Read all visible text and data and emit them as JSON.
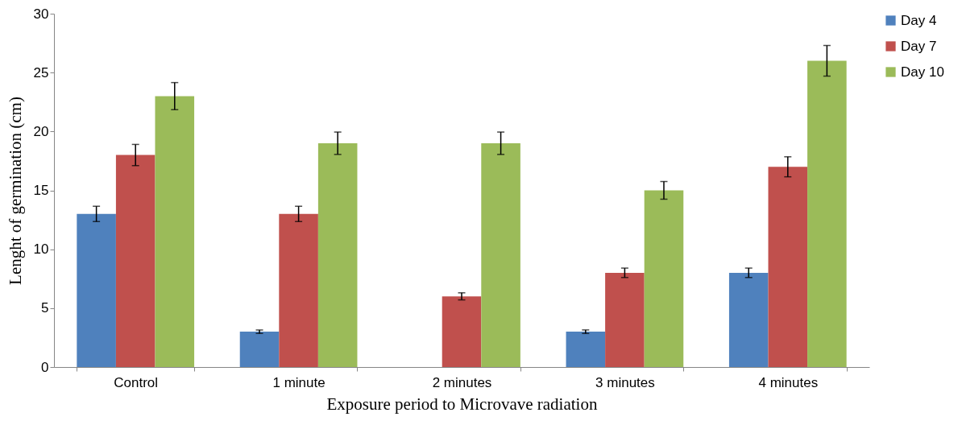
{
  "chart_data": {
    "type": "bar",
    "xlabel": "Exposure period to Microvave radiation",
    "ylabel": "Lenght  of germination (cm)",
    "categories": [
      "Control",
      "1 minute",
      "2 minutes",
      "3 minutes",
      "4 minutes"
    ],
    "series": [
      {
        "name": "Day 4",
        "color": "#4f81bd",
        "values": [
          13,
          3,
          0,
          3,
          8
        ],
        "errors": [
          0.65,
          0.15,
          null,
          0.15,
          0.4
        ]
      },
      {
        "name": "Day 7",
        "color": "#c0504d",
        "values": [
          18,
          13,
          6,
          8,
          17
        ],
        "errors": [
          0.9,
          0.65,
          0.3,
          0.4,
          0.85
        ]
      },
      {
        "name": "Day 10",
        "color": "#9bbb59",
        "values": [
          23,
          19,
          19,
          15,
          26
        ],
        "errors": [
          1.15,
          0.95,
          0.95,
          0.75,
          1.3
        ]
      }
    ],
    "ylim": [
      0,
      30
    ],
    "yticks": [
      0,
      5,
      10,
      15,
      20,
      25,
      30
    ],
    "grid": false,
    "legend": "right"
  }
}
